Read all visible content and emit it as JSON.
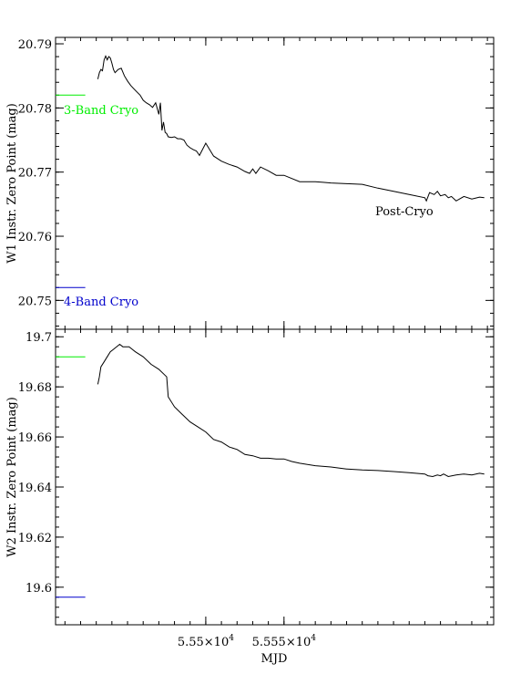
{
  "chart_data": [
    {
      "type": "line",
      "ylabel": "W1 Instr. Zero Point  (mag)",
      "xlim": [
        55404,
        55684
      ],
      "ylim": [
        20.7455,
        20.791
      ],
      "yticks": [
        20.75,
        20.76,
        20.77,
        20.78,
        20.79
      ],
      "yticklabels": [
        "20.75",
        "20.76",
        "20.77",
        "20.78",
        "20.79"
      ],
      "grid": false,
      "reference_lines": [
        {
          "label": "3-Band Cryo",
          "value": 20.782,
          "x_range": [
            55404,
            55423
          ],
          "color": "#00ee00"
        },
        {
          "label": "4-Band Cryo",
          "value": 20.752,
          "x_range": [
            55404,
            55423
          ],
          "color": "#0000cc"
        }
      ],
      "annotations": [
        {
          "text": "Post-Cryo"
        }
      ],
      "series": [
        {
          "color": "#000000",
          "x": [
            55431,
            55432,
            55433,
            55434,
            55435,
            55436,
            55437,
            55438,
            55439,
            55440,
            55441,
            55442,
            55444,
            55446,
            55448,
            55450,
            55452,
            55454,
            55456,
            55458,
            55460,
            55462,
            55464,
            55466,
            55468,
            55470,
            55471,
            55472,
            55473,
            55474,
            55475,
            55476,
            55478,
            55480,
            55482,
            55484,
            55486,
            55488,
            55490,
            55492,
            55494,
            55496,
            55500,
            55505,
            55510,
            55515,
            55520,
            55525,
            55528,
            55530,
            55532,
            55535,
            55540,
            55545,
            55550,
            55560,
            55565,
            55570,
            55575,
            55580,
            55590,
            55600,
            55610,
            55620,
            55630,
            55640,
            55641,
            55643,
            55646,
            55648,
            55650,
            55653,
            55655,
            55657,
            55660,
            55665,
            55670,
            55675,
            55678
          ],
          "y": [
            20.7845,
            20.7855,
            20.786,
            20.7858,
            20.7875,
            20.7881,
            20.7875,
            20.788,
            20.7878,
            20.787,
            20.786,
            20.7855,
            20.786,
            20.7862,
            20.785,
            20.7842,
            20.7835,
            20.783,
            20.7825,
            20.782,
            20.7812,
            20.7808,
            20.7805,
            20.7801,
            20.7808,
            20.779,
            20.7808,
            20.7765,
            20.7778,
            20.7762,
            20.776,
            20.7755,
            20.7754,
            20.7755,
            20.7752,
            20.7752,
            20.775,
            20.7742,
            20.7738,
            20.7735,
            20.7733,
            20.7726,
            20.7745,
            20.7725,
            20.7717,
            20.7712,
            20.7708,
            20.7701,
            20.7698,
            20.7705,
            20.7698,
            20.7708,
            20.7702,
            20.7695,
            20.7695,
            20.7685,
            20.7685,
            20.7685,
            20.7684,
            20.7683,
            20.7682,
            20.7681,
            20.7675,
            20.767,
            20.7665,
            20.766,
            20.7655,
            20.7668,
            20.7665,
            20.767,
            20.7663,
            20.7665,
            20.766,
            20.7662,
            20.7655,
            20.7662,
            20.7658,
            20.7661,
            20.766
          ]
        }
      ]
    },
    {
      "type": "line",
      "xlabel": "MJD",
      "ylabel": "W2 Instr. Zero Point  (mag)",
      "xlim": [
        55404,
        55684
      ],
      "ylim": [
        19.585,
        19.703
      ],
      "yticks": [
        19.6,
        19.62,
        19.64,
        19.66,
        19.68,
        19.7
      ],
      "yticklabels": [
        "19.6",
        "19.62",
        "19.64",
        "19.66",
        "19.68",
        "19.7"
      ],
      "xticks": [
        55500,
        55550
      ],
      "xticklabels": [
        "5.55×10",
        "5.555×10"
      ],
      "xtick_exponent": "4",
      "grid": false,
      "reference_lines": [
        {
          "label": "3-Band Cryo",
          "value": 19.692,
          "x_range": [
            55404,
            55423
          ],
          "color": "#00ee00"
        },
        {
          "label": "4-Band Cryo",
          "value": 19.596,
          "x_range": [
            55404,
            55423
          ],
          "color": "#0000cc"
        }
      ],
      "series": [
        {
          "color": "#000000",
          "x": [
            55431,
            55432,
            55433,
            55435,
            55437,
            55439,
            55441,
            55443,
            55445,
            55447,
            55449,
            55451,
            55453,
            55455,
            55460,
            55465,
            55470,
            55475,
            55476,
            55480,
            55485,
            55490,
            55495,
            55500,
            55505,
            55510,
            55515,
            55520,
            55525,
            55530,
            55535,
            55540,
            55545,
            55550,
            55555,
            55560,
            55570,
            55580,
            55590,
            55600,
            55610,
            55620,
            55630,
            55640,
            55642,
            55645,
            55648,
            55650,
            55652,
            55655,
            55660,
            55665,
            55670,
            55675,
            55678
          ],
          "y": [
            19.681,
            19.684,
            19.688,
            19.69,
            19.692,
            19.694,
            19.695,
            19.696,
            19.697,
            19.696,
            19.696,
            19.696,
            19.695,
            19.694,
            19.692,
            19.689,
            19.687,
            19.684,
            19.676,
            19.672,
            19.669,
            19.666,
            19.664,
            19.662,
            19.659,
            19.658,
            19.656,
            19.655,
            19.653,
            19.6525,
            19.6515,
            19.6515,
            19.6512,
            19.6512,
            19.6502,
            19.6495,
            19.6485,
            19.648,
            19.6472,
            19.6468,
            19.6466,
            19.6462,
            19.6457,
            19.6452,
            19.6445,
            19.6442,
            19.6448,
            19.6445,
            19.6452,
            19.6442,
            19.6448,
            19.6452,
            19.6448,
            19.6455,
            19.6452
          ]
        }
      ]
    }
  ]
}
